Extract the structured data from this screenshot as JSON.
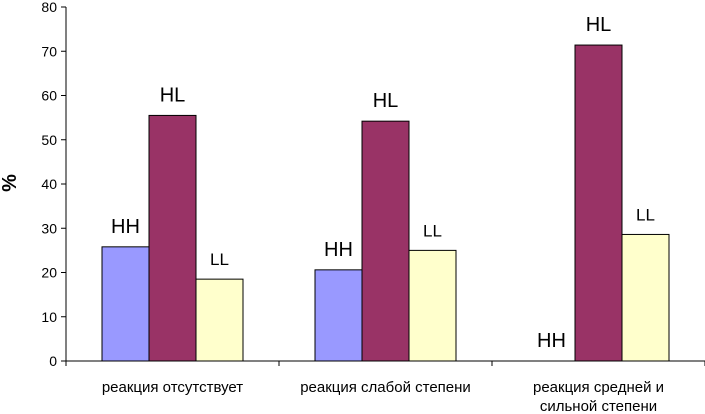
{
  "chart_data": {
    "type": "bar",
    "ylabel": "%",
    "ylim": [
      0,
      80
    ],
    "yticks": [
      0,
      10,
      20,
      30,
      40,
      50,
      60,
      70,
      80
    ],
    "categories": [
      [
        "реакция отсутствует"
      ],
      [
        "реакция слабой степени"
      ],
      [
        "реакция средней и",
        "сильной степени"
      ]
    ],
    "series": [
      {
        "values": [
          25.8,
          20.6,
          0
        ],
        "data_labels": [
          "HH",
          "HH",
          "HH"
        ],
        "color": "#9999ff"
      },
      {
        "values": [
          55.5,
          54.2,
          71.4
        ],
        "data_labels": [
          "HL",
          "HL",
          "HL"
        ],
        "color": "#993366"
      },
      {
        "values": [
          18.5,
          25.0,
          28.6
        ],
        "data_labels": [
          "LL",
          "LL",
          "LL"
        ],
        "color": "#ffffcc"
      }
    ],
    "grid": false,
    "legend": "none"
  }
}
